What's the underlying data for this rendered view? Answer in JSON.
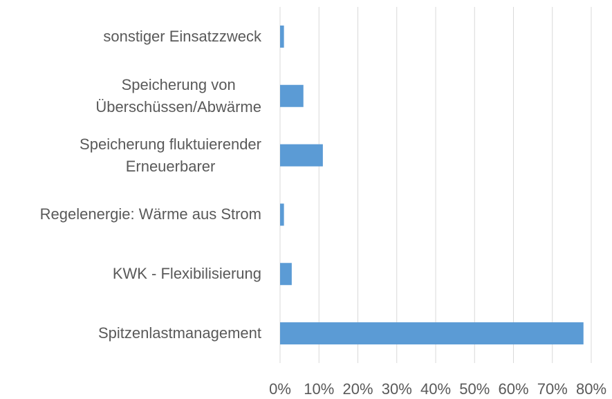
{
  "chart_data": {
    "type": "bar",
    "orientation": "horizontal",
    "categories": [
      "sonstiger Einsatzzweck",
      "Speicherung von\nÜberschüssen/Abwärme",
      "Speicherung fluktuierender\nErneuerbarer",
      "Regelenergie: Wärme aus Strom",
      "KWK - Flexibilisierung",
      "Spitzenlastmanagement"
    ],
    "values": [
      1,
      6,
      11,
      1,
      3,
      78
    ],
    "color": "#5b9bd5",
    "xlim": [
      0,
      80
    ],
    "xticks": [
      {
        "value": 0,
        "label": "0%"
      },
      {
        "value": 10,
        "label": "10%"
      },
      {
        "value": 20,
        "label": "20%"
      },
      {
        "value": 30,
        "label": "30%"
      },
      {
        "value": 40,
        "label": "40%"
      },
      {
        "value": 50,
        "label": "50%"
      },
      {
        "value": 60,
        "label": "60%"
      },
      {
        "value": 70,
        "label": "70%"
      },
      {
        "value": 80,
        "label": "80%"
      }
    ],
    "grid": true
  }
}
